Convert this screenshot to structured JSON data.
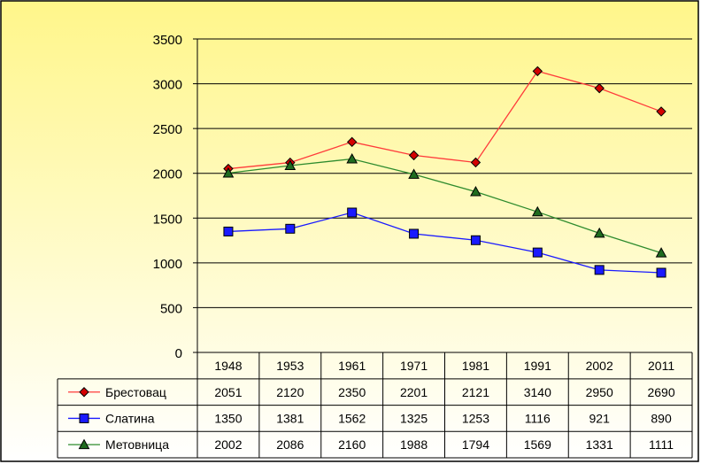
{
  "chart_data": {
    "type": "line",
    "categories": [
      "1948",
      "1953",
      "1961",
      "1971",
      "1981",
      "1991",
      "2002",
      "2011"
    ],
    "series": [
      {
        "name": "Брестовац",
        "values": [
          2051,
          2120,
          2350,
          2201,
          2121,
          3140,
          2950,
          2690
        ],
        "line_color": "#ff3b3b",
        "marker": "diamond",
        "marker_fill": "#d40000",
        "value_labels": [
          "2051",
          "2120",
          "2350",
          "2201",
          "2121",
          "3140",
          "2950",
          "2690"
        ]
      },
      {
        "name": "Слатина",
        "values": [
          1350,
          1381,
          1562,
          1325,
          1253,
          1116,
          921,
          890
        ],
        "line_color": "#1a1aff",
        "marker": "square",
        "marker_fill": "#1a1aff",
        "value_labels": [
          "1350",
          "1381",
          "1562",
          "1325",
          "1253",
          "1116",
          "921",
          "890"
        ]
      },
      {
        "name": "Метовница",
        "values": [
          2002,
          2086,
          2160,
          1988,
          1794,
          1569,
          1331,
          1111
        ],
        "line_color": "#2e8b2e",
        "marker": "triangle",
        "marker_fill": "#1f6b1f",
        "value_labels": [
          "2002",
          "2086",
          "2160",
          "1988",
          "1794",
          "1569",
          "1331",
          "1111"
        ]
      }
    ],
    "title": "",
    "xlabel": "",
    "ylabel": "",
    "ylim": [
      0,
      3500
    ],
    "y_ticks": [
      "0",
      "500",
      "1000",
      "1500",
      "2000",
      "2500",
      "3000",
      "3500"
    ],
    "grid": true,
    "legend": "data-table-left",
    "colors": {
      "background_top": "#fff68a",
      "background_bottom": "#ffffff",
      "grid": "#000000"
    }
  }
}
